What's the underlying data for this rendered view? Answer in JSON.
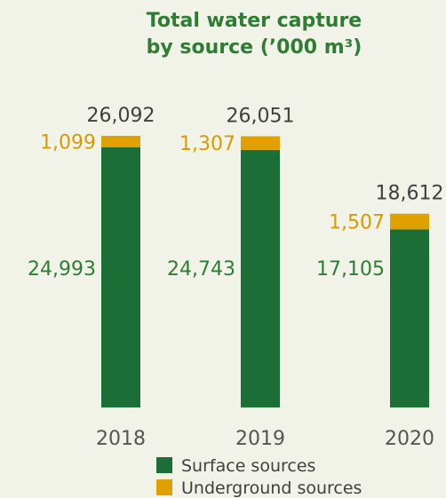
{
  "chart_data": {
    "type": "bar",
    "stacked": true,
    "title_lines": [
      "Total water capture",
      "by source (’000 m³)"
    ],
    "categories": [
      "2018",
      "2019",
      "2020"
    ],
    "series": [
      {
        "name": "Surface sources",
        "color": "#1b6e35",
        "values": [
          24993,
          24743,
          17105
        ],
        "labels": [
          "24,993",
          "24,743",
          "17,105"
        ]
      },
      {
        "name": "Underground sources",
        "color": "#e0a000",
        "values": [
          1099,
          1307,
          1507
        ],
        "labels": [
          "1,099",
          "1,307",
          "1,507"
        ]
      }
    ],
    "totals": [
      26092,
      26051,
      18612
    ],
    "total_labels": [
      "26,092",
      "26,051",
      "18,612"
    ],
    "grid": false,
    "legend_position": "bottom"
  }
}
